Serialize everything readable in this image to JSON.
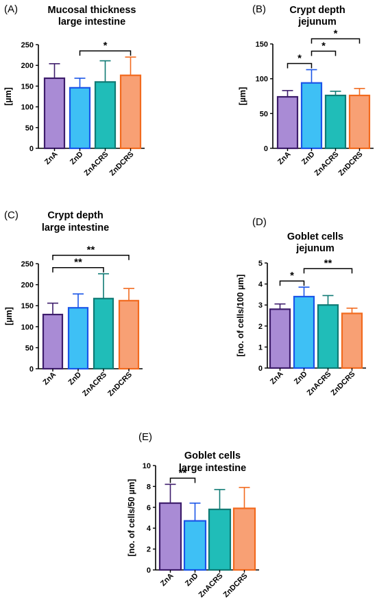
{
  "colors": {
    "ZnA": {
      "fill": "#a98bd5",
      "edge": "#3d1c6b"
    },
    "ZnD": {
      "fill": "#3ec0f5",
      "edge": "#1a55e8"
    },
    "ZnACRS": {
      "fill": "#20bdb8",
      "edge": "#0f7a74"
    },
    "ZnDCRS": {
      "fill": "#f8a074",
      "edge": "#f26a1e"
    }
  },
  "chart_data": [
    {
      "type": "bar",
      "panel": "(A)",
      "title": [
        "Mucosal thickness",
        "large intestine"
      ],
      "ylabel": "[µm]",
      "ylim": [
        0,
        250
      ],
      "yticks": [
        0,
        50,
        100,
        150,
        200,
        250
      ],
      "categories": [
        "ZnA",
        "ZnD",
        "ZnACRS",
        "ZnDCRS"
      ],
      "values": [
        169,
        146,
        160,
        176
      ],
      "errors": [
        35,
        23,
        51,
        44
      ],
      "significance": [
        {
          "from": 1,
          "to": 3,
          "label": "*"
        }
      ]
    },
    {
      "type": "bar",
      "panel": "(B)",
      "title": [
        "Crypt depth",
        "jejunum"
      ],
      "ylabel": "[µm]",
      "ylim": [
        0,
        150
      ],
      "yticks": [
        0,
        50,
        100,
        150
      ],
      "categories": [
        "ZnA",
        "ZnD",
        "ZnACRS",
        "ZnDCRS"
      ],
      "values": [
        74,
        94,
        76,
        76
      ],
      "errors": [
        9,
        19,
        6,
        10
      ],
      "significance": [
        {
          "from": 0,
          "to": 1,
          "label": "*"
        },
        {
          "from": 1,
          "to": 2,
          "label": "*"
        },
        {
          "from": 1,
          "to": 3,
          "label": "*"
        }
      ]
    },
    {
      "type": "bar",
      "panel": "(C)",
      "title": [
        "Crypt depth",
        "large intestine"
      ],
      "ylabel": "[µm]",
      "ylim": [
        0,
        250
      ],
      "yticks": [
        0,
        50,
        100,
        150,
        200,
        250
      ],
      "categories": [
        "ZnA",
        "ZnD",
        "ZnACRS",
        "ZnDCRS"
      ],
      "values": [
        129,
        145,
        167,
        162
      ],
      "errors": [
        27,
        33,
        59,
        29
      ],
      "significance": [
        {
          "from": 0,
          "to": 2,
          "label": "**"
        },
        {
          "from": 0,
          "to": 3,
          "label": "**"
        }
      ]
    },
    {
      "type": "bar",
      "panel": "(D)",
      "title": [
        "Goblet cells",
        "jejunum"
      ],
      "ylabel": "[no. of cells/100 µm]",
      "ylim": [
        0,
        5
      ],
      "yticks": [
        0,
        1,
        2,
        3,
        4,
        5
      ],
      "categories": [
        "ZnA",
        "ZnD",
        "ZnACRS",
        "ZnDCRS"
      ],
      "values": [
        2.8,
        3.4,
        3.0,
        2.6
      ],
      "errors": [
        0.25,
        0.45,
        0.45,
        0.25
      ],
      "significance": [
        {
          "from": 0,
          "to": 1,
          "label": "*"
        },
        {
          "from": 1,
          "to": 3,
          "label": "**"
        }
      ]
    },
    {
      "type": "bar",
      "panel": "(E)",
      "title": [
        "Goblet cells",
        "large intestine"
      ],
      "ylabel": "[no. of cells/50 µm]",
      "ylim": [
        0,
        10
      ],
      "yticks": [
        0,
        2,
        4,
        6,
        8,
        10
      ],
      "categories": [
        "ZnA",
        "ZnD",
        "ZnACRS",
        "ZnDCRS"
      ],
      "values": [
        6.4,
        4.7,
        5.8,
        5.9
      ],
      "errors": [
        1.8,
        1.7,
        1.9,
        2.0
      ],
      "significance": [
        {
          "from": 0,
          "to": 1,
          "label": "**"
        }
      ]
    }
  ]
}
